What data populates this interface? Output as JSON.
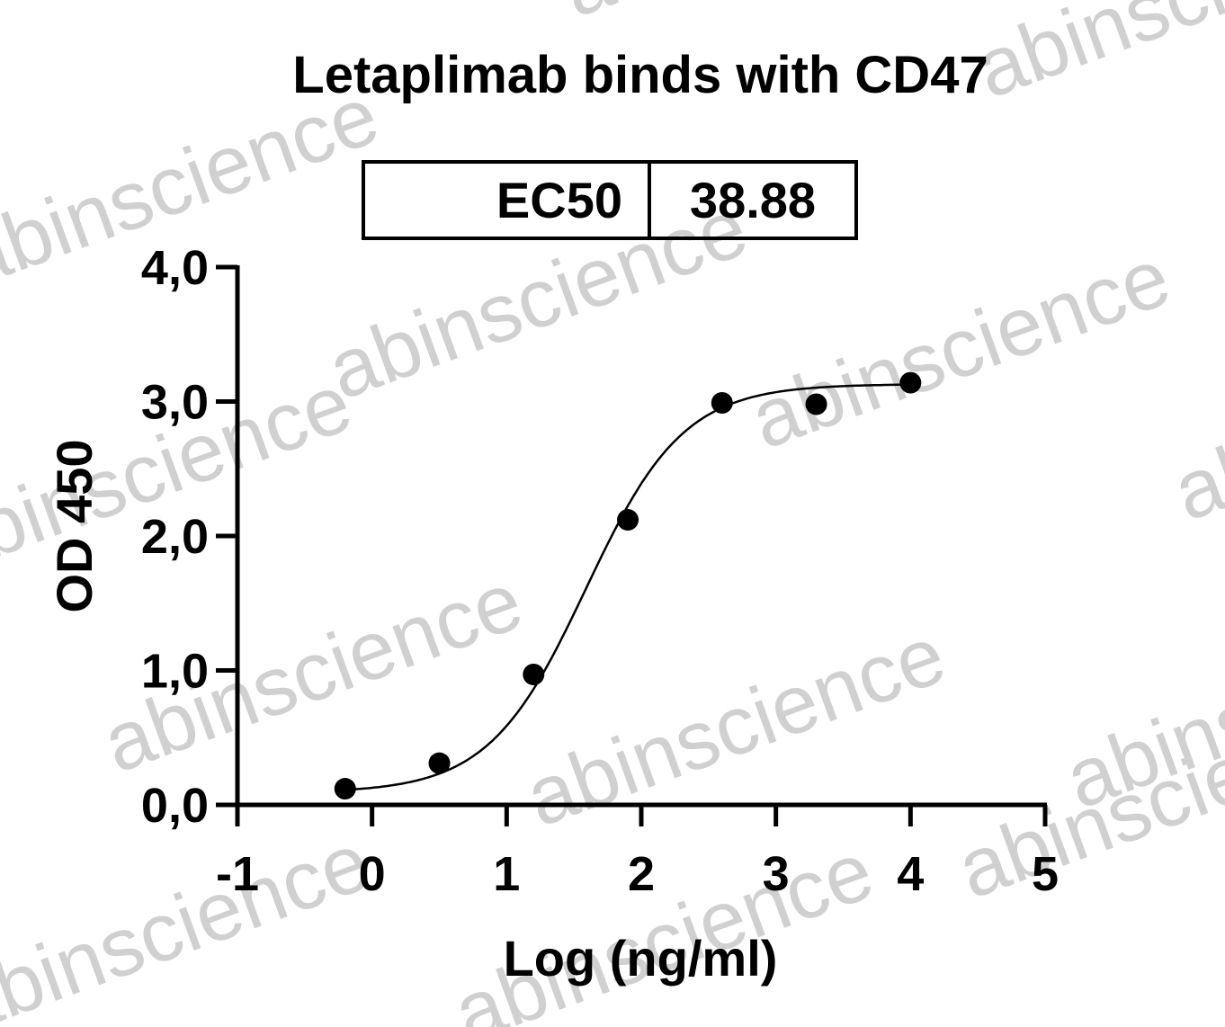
{
  "watermark_text": "abinscience",
  "chart_data": {
    "type": "scatter",
    "title": "Letaplimab binds with CD47",
    "xlabel": "Log (ng/ml)",
    "ylabel": "OD 450",
    "xlim": [
      -1,
      5
    ],
    "ylim": [
      0,
      4
    ],
    "x_ticks": [
      -1,
      0,
      1,
      2,
      3,
      4,
      5
    ],
    "x_tick_labels": [
      "-1",
      "0",
      "1",
      "2",
      "3",
      "4",
      "5"
    ],
    "y_ticks": [
      0,
      1,
      2,
      3,
      4
    ],
    "y_tick_labels": [
      "0,0",
      "1,0",
      "2,0",
      "3,0",
      "4,0"
    ],
    "grid": false,
    "series": [
      {
        "x": [
          -0.2,
          0.5,
          1.2,
          1.9,
          2.6,
          3.3,
          4.0
        ],
        "y": [
          0.12,
          0.31,
          0.97,
          2.12,
          2.99,
          2.98,
          3.14
        ],
        "marker": "circle",
        "color": "#000000",
        "fit": "4PL sigmoid",
        "fit_params": {
          "bottom": 0.09,
          "top": 3.13,
          "logEC50": 1.59,
          "hill": 1.2
        }
      }
    ],
    "ec50_table": {
      "label": "EC50",
      "value": "38.88"
    }
  }
}
